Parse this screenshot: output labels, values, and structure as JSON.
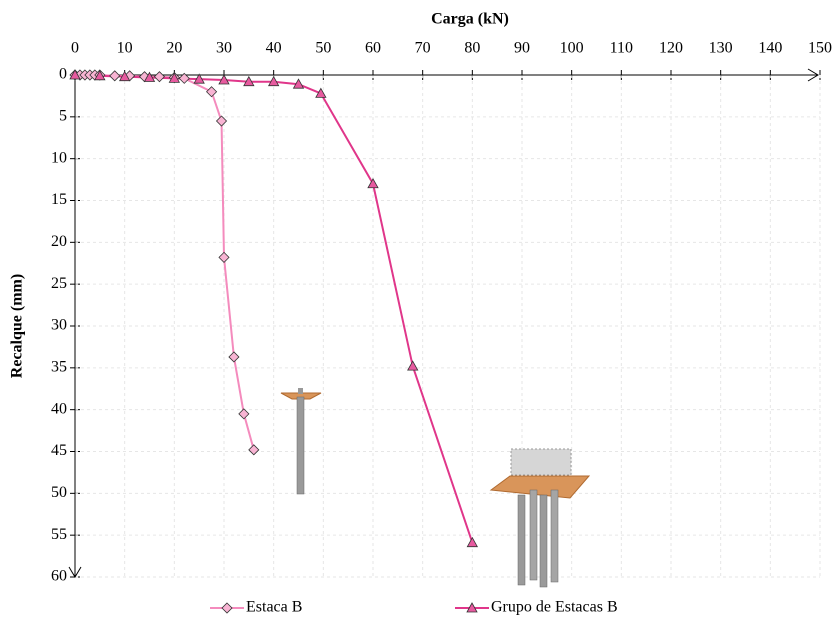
{
  "chart_data": {
    "type": "line",
    "title": "Carga (kN)",
    "y_label": "Recalque (mm)",
    "series": [
      {
        "name": "Estaca B",
        "color": "#f48bbd",
        "marker": "diamond",
        "marker_color": "#f8b4d3",
        "x": [
          0,
          1,
          2,
          3,
          4,
          5,
          8,
          11,
          14,
          17,
          20,
          22,
          27.5,
          29.5,
          30,
          32,
          34,
          36
        ],
        "values": [
          0,
          0,
          0,
          0,
          0,
          0,
          0.1,
          0.1,
          0.2,
          0.2,
          0.3,
          0.4,
          2,
          5.5,
          21.8,
          33.7,
          40.5,
          44.8
        ]
      },
      {
        "name": "Grupo de Estacas B",
        "color": "#e0368a",
        "marker": "triangle",
        "marker_color": "#e75a9f",
        "x": [
          0,
          5,
          10,
          15,
          20,
          25,
          30,
          35,
          40,
          45,
          49.5,
          60,
          68,
          80
        ],
        "values": [
          0,
          0.1,
          0.2,
          0.3,
          0.4,
          0.5,
          0.6,
          0.8,
          0.8,
          1.1,
          2.2,
          13,
          34.8,
          55.9
        ]
      }
    ],
    "xlim": [
      0,
      150
    ],
    "xticks": [
      0,
      10,
      20,
      30,
      40,
      50,
      60,
      70,
      80,
      90,
      100,
      110,
      120,
      130,
      140,
      150
    ],
    "ylim": [
      0,
      60
    ],
    "yticks": [
      0,
      5,
      10,
      15,
      20,
      25,
      30,
      35,
      40,
      45,
      50,
      55,
      60
    ],
    "y_reversed": true,
    "x_axis_top": true,
    "grid": true,
    "legend": "bottom"
  }
}
